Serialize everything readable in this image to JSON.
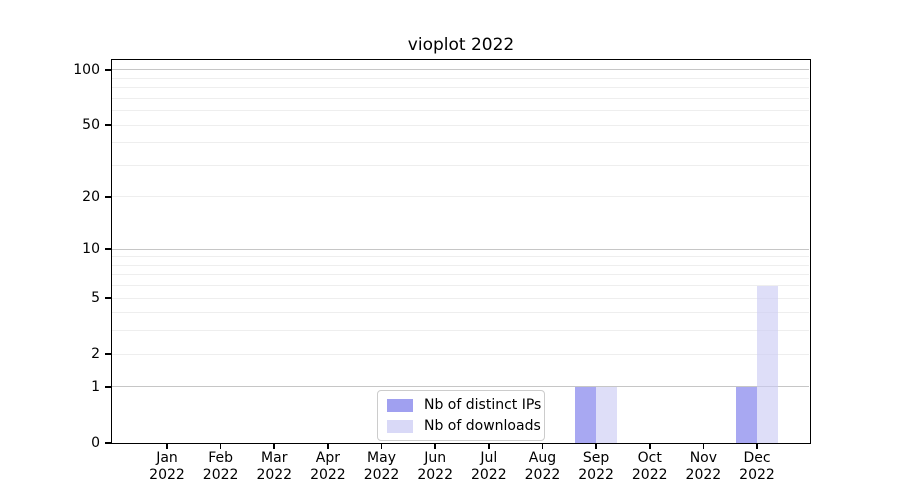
{
  "chart_data": {
    "type": "bar",
    "title": "vioplot 2022",
    "categories": [
      "Jan",
      "Feb",
      "Mar",
      "Apr",
      "May",
      "Jun",
      "Jul",
      "Aug",
      "Sep",
      "Oct",
      "Nov",
      "Dec"
    ],
    "category_year": "2022",
    "series": [
      {
        "name": "Nb of distinct IPs",
        "color_hex": "#9090ee",
        "alpha": 0.78,
        "values": [
          0,
          0,
          0,
          0,
          0,
          0,
          0,
          0,
          1,
          0,
          0,
          1
        ]
      },
      {
        "name": "Nb of downloads",
        "color_hex": "#c9c9f4",
        "alpha": 0.62,
        "values": [
          0,
          0,
          0,
          0,
          0,
          0,
          0,
          0,
          1,
          0,
          0,
          6
        ]
      }
    ],
    "xlabel": "",
    "ylabel": "",
    "y_axis": {
      "scale": "log1p",
      "tick_values": [
        0,
        1,
        2,
        5,
        10,
        20,
        50,
        100
      ],
      "tick_labels": [
        "0",
        "1",
        "2",
        "5",
        "10",
        "20",
        "50",
        "100"
      ],
      "major_gridlines": [
        1,
        10,
        100
      ],
      "minor_gridlines": [
        2,
        3,
        4,
        5,
        6,
        7,
        8,
        9,
        20,
        30,
        40,
        50,
        60,
        70,
        80,
        90
      ],
      "ylim": [
        0,
        113
      ]
    },
    "grid": true,
    "legend": {
      "position": "bottom-center-inside",
      "entries": [
        "Nb of distinct IPs",
        "Nb of downloads"
      ]
    }
  },
  "colors": {
    "background": "#ffffff",
    "axis_frame": "#000000",
    "major_grid": "#c6c6c6",
    "minor_grid": "#eeeeee",
    "text": "#000000",
    "legend_border": "#cccccc"
  }
}
